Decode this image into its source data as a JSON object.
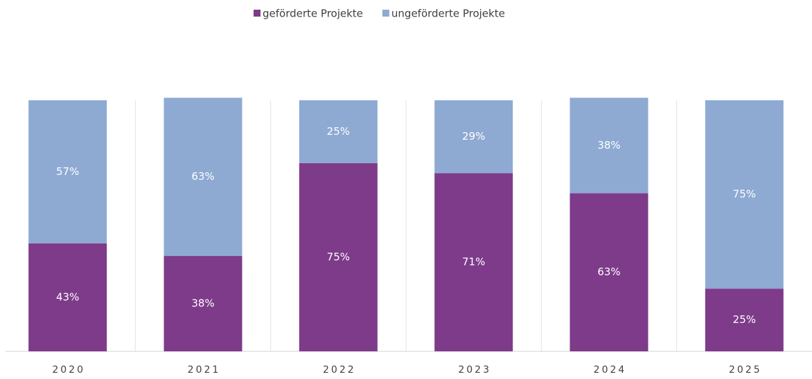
{
  "chart_data": {
    "type": "stacked_bar",
    "categories": [
      "2020",
      "2021",
      "2022",
      "2023",
      "2024",
      "2025"
    ],
    "series": [
      {
        "name": "geförderte Projekte",
        "color": "#7e3b8a",
        "values": [
          43,
          38,
          75,
          71,
          63,
          25
        ],
        "value_labels": [
          "43%",
          "38%",
          "75%",
          "71%",
          "63%",
          "25%"
        ]
      },
      {
        "name": "ungeförderte Projekte",
        "color": "#8eaad3",
        "values": [
          57,
          63,
          25,
          29,
          38,
          75
        ],
        "value_labels": [
          "57%",
          "63%",
          "25%",
          "29%",
          "38%",
          "75%"
        ]
      }
    ],
    "ylim": [
      0,
      100
    ],
    "legend": "top"
  }
}
